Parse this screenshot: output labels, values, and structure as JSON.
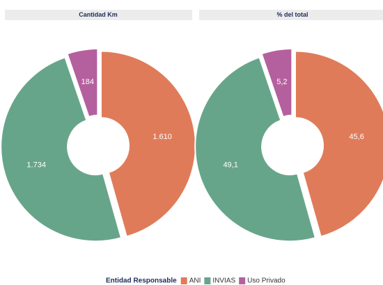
{
  "chart_data": [
    {
      "type": "pie",
      "title": "Cantidad Km",
      "categories": [
        "ANI",
        "INVIAS",
        "Uso Privado"
      ],
      "values": [
        1610,
        1734,
        184
      ],
      "value_labels": [
        "1.610",
        "1.734",
        "184"
      ],
      "colors": [
        "#e07b5a",
        "#67a58a",
        "#b5609e"
      ]
    },
    {
      "type": "pie",
      "title": "% del total",
      "categories": [
        "ANI",
        "INVIAS",
        "Uso Privado"
      ],
      "values": [
        45.6,
        49.1,
        5.2
      ],
      "value_labels": [
        "45,6",
        "49,1",
        "5,2"
      ],
      "colors": [
        "#e07b5a",
        "#67a58a",
        "#b5609e"
      ]
    }
  ],
  "legend_title": "Entidad Responsable"
}
